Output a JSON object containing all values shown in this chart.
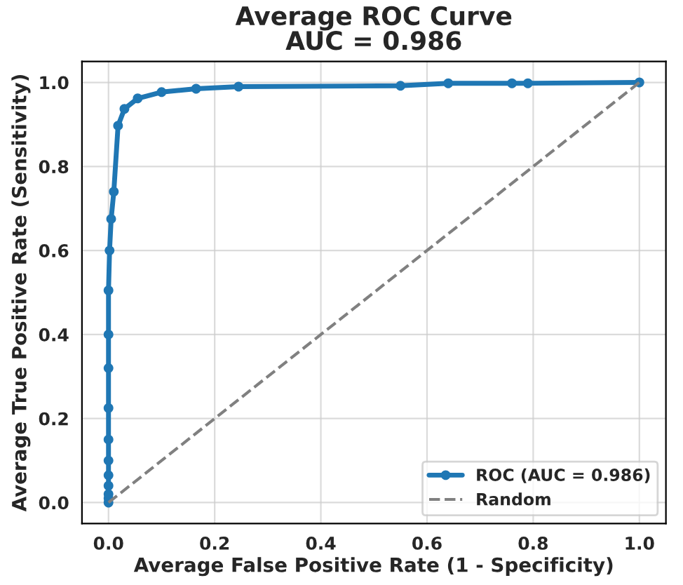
{
  "chart_data": {
    "type": "line",
    "title": "Average ROC Curve\nAUC = 0.986",
    "xlabel": "Average False Positive Rate (1 - Specificity)",
    "ylabel": "Average True Positive Rate (Sensitivity)",
    "series": [
      {
        "name": "ROC (AUC = 0.986)",
        "color": "#1f77b4",
        "marker": "circle",
        "line_style": "solid",
        "x": [
          0,
          0,
          0,
          0,
          0,
          0,
          0,
          0,
          0,
          0,
          0,
          0.002,
          0.005,
          0.01,
          0.018,
          0.03,
          0.055,
          0.1,
          0.165,
          0.245,
          0.55,
          0.64,
          0.76,
          0.79,
          1
        ],
        "values": [
          0,
          0.01,
          0.02,
          0.04,
          0.065,
          0.1,
          0.15,
          0.225,
          0.32,
          0.4,
          0.505,
          0.6,
          0.675,
          0.74,
          0.897,
          0.937,
          0.962,
          0.977,
          0.985,
          0.99,
          0.992,
          0.998,
          0.998,
          0.998,
          1
        ]
      },
      {
        "name": "Random",
        "color": "#808080",
        "marker": "none",
        "line_style": "dashed",
        "x": [
          0,
          1
        ],
        "values": [
          0,
          1
        ]
      }
    ],
    "xlim": [
      -0.05,
      1.05
    ],
    "ylim": [
      -0.05,
      1.05
    ],
    "xticks": [
      {
        "value": 0,
        "label": "0.0"
      },
      0.2,
      0.4,
      0.6,
      0.8,
      {
        "value": 1,
        "label": "1.0"
      }
    ],
    "yticks": [
      {
        "value": 0,
        "label": "0.0"
      },
      0.2,
      0.4,
      0.6,
      0.8,
      {
        "value": 1,
        "label": "1.0"
      }
    ],
    "grid": true,
    "legend": "bottom right"
  }
}
